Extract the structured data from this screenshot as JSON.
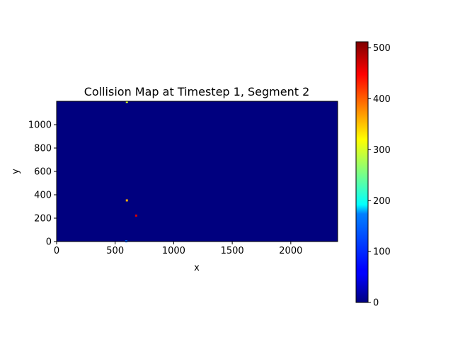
{
  "chart_data": {
    "type": "heatmap",
    "title": "Collision Map at Timestep 1, Segment 2",
    "xlabel": "x",
    "ylabel": "y",
    "xlim": [
      0,
      2400
    ],
    "ylim": [
      0,
      1200
    ],
    "x_ticks": [
      "0",
      "500",
      "1000",
      "1500",
      "2000"
    ],
    "y_ticks": [
      "0",
      "200",
      "400",
      "600",
      "800",
      "1000"
    ],
    "background_value": 0,
    "colormap": "jet",
    "colorbar": {
      "range": [
        0,
        512
      ],
      "ticks": [
        "0",
        "100",
        "200",
        "300",
        "400",
        "500"
      ]
    },
    "hotspots": [
      {
        "x": 600,
        "y": 1195,
        "value": 300
      },
      {
        "x": 600,
        "y": 352,
        "value": 360
      },
      {
        "x": 680,
        "y": 222,
        "value": 470
      },
      {
        "x": 595,
        "y": 2,
        "value": 120
      }
    ],
    "grid": false,
    "legend": "colorbar-right"
  },
  "colors": {
    "background_cell": "#00007f",
    "axis": "#000000"
  }
}
